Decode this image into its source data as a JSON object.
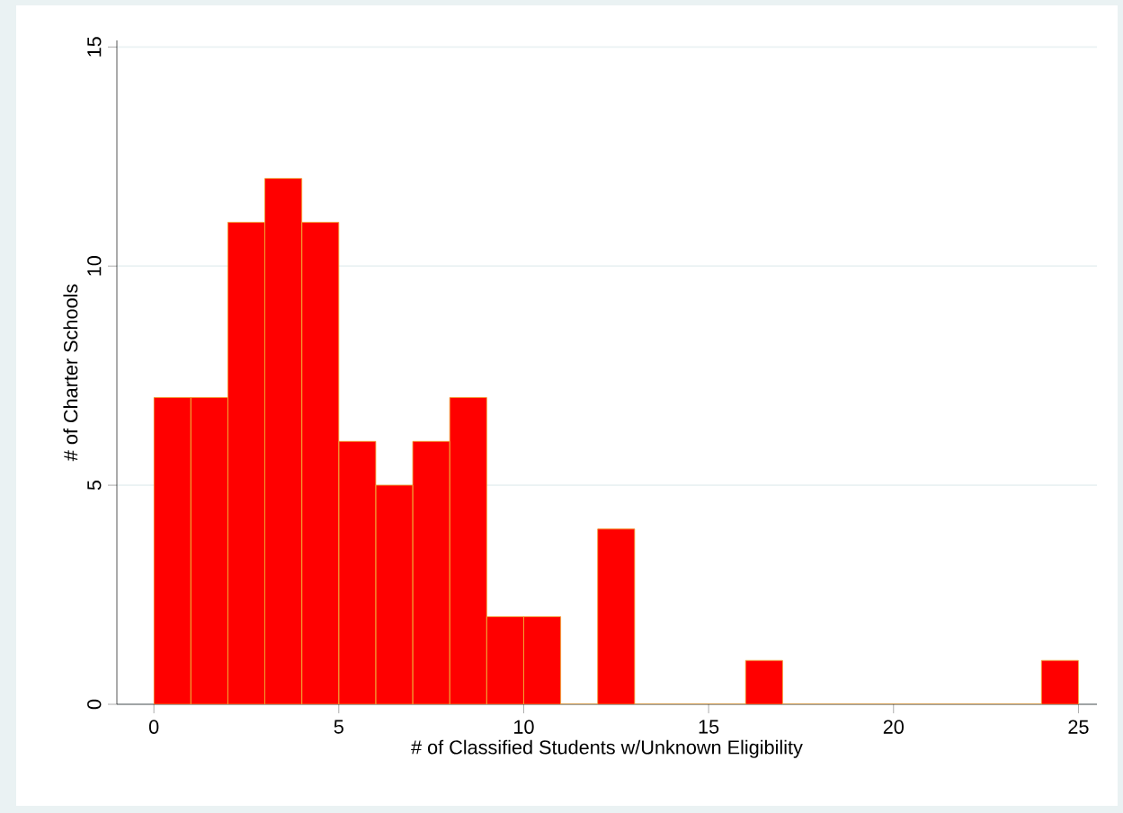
{
  "chart_data": {
    "type": "histogram",
    "xlabel": "# of Classified Students w/Unknown Eligibility",
    "ylabel": "# of Charter Schools",
    "bins": [
      0,
      1,
      2,
      3,
      4,
      5,
      6,
      7,
      8,
      9,
      10,
      11,
      12,
      13,
      14,
      15,
      16,
      17,
      18,
      19,
      20,
      21,
      22,
      23,
      24,
      25
    ],
    "values": [
      7,
      7,
      11,
      12,
      11,
      6,
      5,
      6,
      7,
      2,
      2,
      0,
      4,
      0,
      0,
      0,
      1,
      0,
      0,
      0,
      0,
      0,
      0,
      0,
      1
    ],
    "color": "#ff0000",
    "xlim": [
      -1,
      25.5
    ],
    "ylim": [
      0,
      15.15
    ],
    "xticks": [
      0,
      5,
      10,
      15,
      20,
      25
    ],
    "yticks": [
      0,
      5,
      10,
      15
    ],
    "grid": "y"
  }
}
